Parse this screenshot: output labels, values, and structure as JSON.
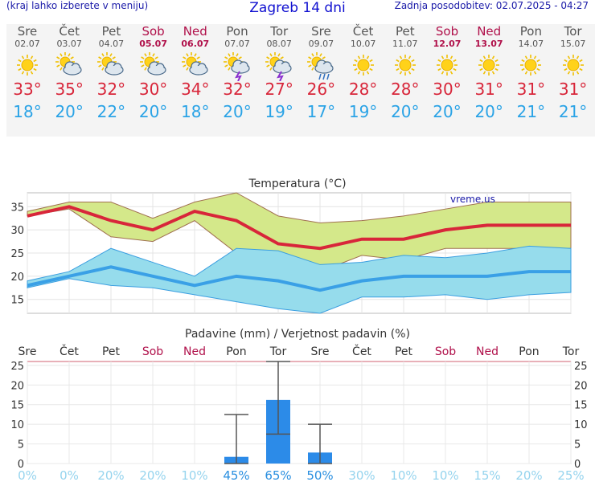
{
  "header": {
    "menu_hint": "(kraj lahko izberete v meniju)",
    "title": "Zagreb 14 dni",
    "updated": "Zadnja posodobitev: 02.07.2025 - 04:27"
  },
  "days": [
    {
      "name": "Sre",
      "date": "02.07",
      "weekend": false,
      "icon": "sun-icon",
      "tmax": "33°",
      "tmin": "18°"
    },
    {
      "name": "Čet",
      "date": "03.07",
      "weekend": false,
      "icon": "sun-cloud-icon",
      "tmax": "35°",
      "tmin": "20°"
    },
    {
      "name": "Pet",
      "date": "04.07",
      "weekend": false,
      "icon": "sun-cloud-icon",
      "tmax": "32°",
      "tmin": "22°"
    },
    {
      "name": "Sob",
      "date": "05.07",
      "weekend": true,
      "icon": "sun-cloud-icon",
      "tmax": "30°",
      "tmin": "20°"
    },
    {
      "name": "Ned",
      "date": "06.07",
      "weekend": true,
      "icon": "sun-cloud-icon",
      "tmax": "34°",
      "tmin": "18°"
    },
    {
      "name": "Pon",
      "date": "07.07",
      "weekend": false,
      "icon": "sun-storm-icon",
      "tmax": "32°",
      "tmin": "20°"
    },
    {
      "name": "Tor",
      "date": "08.07",
      "weekend": false,
      "icon": "sun-storm-icon",
      "tmax": "27°",
      "tmin": "19°"
    },
    {
      "name": "Sre",
      "date": "09.07",
      "weekend": false,
      "icon": "sun-rain-icon",
      "tmax": "26°",
      "tmin": "17°"
    },
    {
      "name": "Čet",
      "date": "10.07",
      "weekend": false,
      "icon": "sun-icon",
      "tmax": "28°",
      "tmin": "19°"
    },
    {
      "name": "Pet",
      "date": "11.07",
      "weekend": false,
      "icon": "sun-icon",
      "tmax": "28°",
      "tmin": "20°"
    },
    {
      "name": "Sob",
      "date": "12.07",
      "weekend": true,
      "icon": "sun-icon",
      "tmax": "30°",
      "tmin": "20°"
    },
    {
      "name": "Ned",
      "date": "13.07",
      "weekend": true,
      "icon": "sun-icon",
      "tmax": "31°",
      "tmin": "20°"
    },
    {
      "name": "Pon",
      "date": "14.07",
      "weekend": false,
      "icon": "sun-icon",
      "tmax": "31°",
      "tmin": "21°"
    },
    {
      "name": "Tor",
      "date": "15.07",
      "weekend": false,
      "icon": "sun-icon",
      "tmax": "31°",
      "tmin": "21°"
    }
  ],
  "colors": {
    "max": "#d8263a",
    "min": "#2aa3e6",
    "weekend": "#b0104a",
    "maxband": "#d4e88a",
    "minband": "#96dcec",
    "bar": "#2c8be8"
  },
  "chart_data": [
    {
      "type": "line",
      "title": "Temperatura (°C)",
      "watermark": "vreme.us",
      "ylim": [
        12,
        38
      ],
      "yticks": [
        15,
        20,
        25,
        30,
        35
      ],
      "series": [
        {
          "values": [
            33,
            35,
            32,
            30,
            34,
            32,
            27,
            26,
            28,
            28,
            30,
            31,
            31,
            31
          ]
        },
        {
          "values": [
            18,
            20,
            22,
            20,
            18,
            20,
            19,
            17,
            19,
            20,
            20,
            20,
            21,
            21
          ]
        }
      ],
      "max_band_upper": [
        34,
        36,
        36,
        32.5,
        36,
        38,
        33,
        31.5,
        32,
        33,
        34.5,
        36,
        36,
        36
      ],
      "max_band_lower": [
        33,
        34.5,
        28.5,
        27.5,
        32,
        25,
        22,
        21,
        24.5,
        23.5,
        26,
        26,
        26,
        26
      ],
      "min_band_upper": [
        19,
        21,
        26,
        23,
        20,
        26,
        25.5,
        22.5,
        23,
        24.5,
        24,
        25,
        26.5,
        26
      ],
      "min_band_lower": [
        17.5,
        19.5,
        18,
        17.5,
        16,
        14.5,
        13,
        12,
        15.5,
        15.5,
        16,
        15,
        16,
        16.5
      ]
    },
    {
      "type": "bar",
      "title": "Padavine (mm) / Verjetnost padavin (%)",
      "categories": [
        "Sre",
        "Čet",
        "Pet",
        "Sob",
        "Ned",
        "Pon",
        "Tor",
        "Sre",
        "Čet",
        "Pet",
        "Sob",
        "Ned",
        "Pon",
        "Tor"
      ],
      "ylim": [
        0,
        26
      ],
      "yticks": [
        0,
        5,
        10,
        15,
        20,
        25
      ],
      "values": [
        0,
        0,
        0,
        0,
        0,
        1.7,
        16.2,
        2.8,
        0,
        0,
        0,
        0,
        0,
        0
      ],
      "error_low": [
        null,
        null,
        null,
        null,
        null,
        0,
        7.5,
        0,
        null,
        null,
        null,
        null,
        null,
        null
      ],
      "error_high": [
        null,
        null,
        null,
        null,
        null,
        12.5,
        26,
        10,
        null,
        null,
        null,
        null,
        null,
        null
      ],
      "probability": [
        "0%",
        "0%",
        "20%",
        "20%",
        "10%",
        "45%",
        "65%",
        "50%",
        "30%",
        "10%",
        "10%",
        "15%",
        "20%",
        "25%"
      ]
    }
  ]
}
